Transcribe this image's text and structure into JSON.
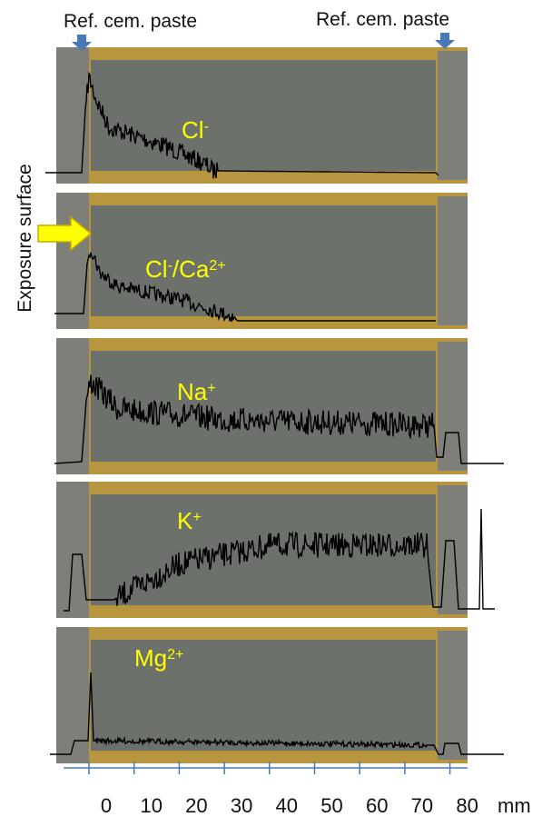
{
  "header": {
    "left_label": "Ref. cem. paste",
    "right_label": "Ref. cem. paste",
    "side_label": "Exposure surface"
  },
  "panels": [
    {
      "label": {
        "base": "Cl",
        "sup": "-"
      }
    },
    {
      "label": {
        "base": "Cl",
        "sup": "-",
        "sep": "/Ca",
        "sup2": "2+"
      }
    },
    {
      "label": {
        "base": "Na",
        "sup": "+"
      }
    },
    {
      "label": {
        "base": "K",
        "sup": "+"
      }
    },
    {
      "label": {
        "base": "Mg",
        "sup": "2+"
      }
    }
  ],
  "axis": {
    "ticks": [
      "0",
      "10",
      "20",
      "30",
      "40",
      "50",
      "60",
      "70",
      "80"
    ],
    "unit": "mm"
  }
}
